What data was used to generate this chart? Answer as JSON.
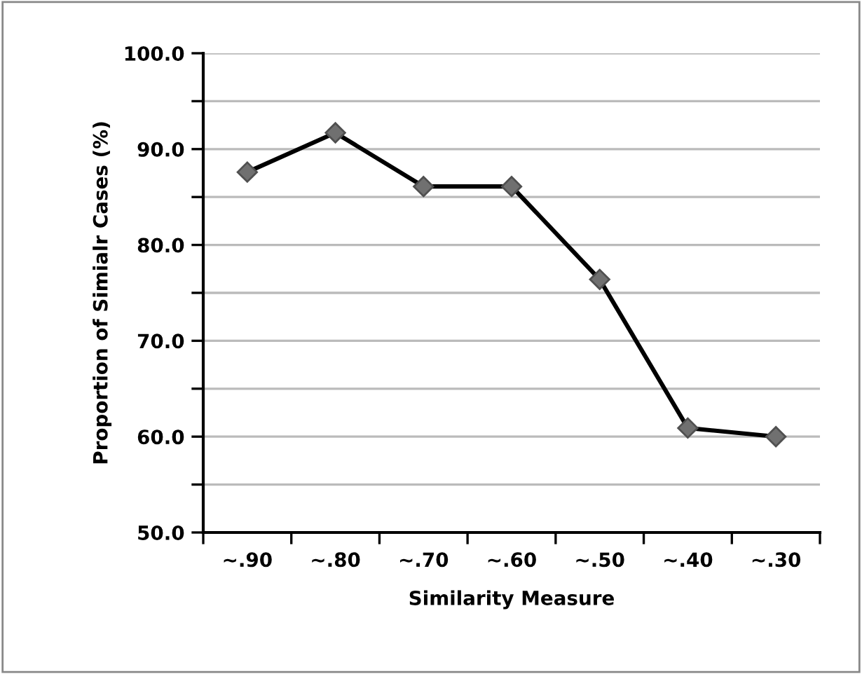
{
  "chart_data": {
    "type": "line",
    "xlabel": "Similarity Measure",
    "ylabel": "Proportion of Simialr Cases (%)",
    "categories": [
      "~.90",
      "~.80",
      "~.70",
      "~.60",
      "~.50",
      "~.40",
      "~.30"
    ],
    "series": [
      {
        "color": "#000000",
        "values": [
          87.6,
          91.7,
          86.1,
          86.1,
          76.4,
          60.9,
          60.0
        ]
      }
    ],
    "ylim": [
      50,
      100
    ],
    "yticks": [
      {
        "value": 50,
        "label": "50.0"
      },
      {
        "value": 55,
        "label": null
      },
      {
        "value": 60,
        "label": "60.0"
      },
      {
        "value": 65,
        "label": null
      },
      {
        "value": 70,
        "label": "70.0"
      },
      {
        "value": 75,
        "label": null
      },
      {
        "value": 80,
        "label": "80.0"
      },
      {
        "value": 85,
        "label": null
      },
      {
        "value": 90,
        "label": "90.0"
      },
      {
        "value": 95,
        "label": null
      },
      {
        "value": 100,
        "label": "100.0"
      }
    ],
    "grid": "y",
    "marker": "diamond",
    "line_style": "solid",
    "legend": false
  }
}
